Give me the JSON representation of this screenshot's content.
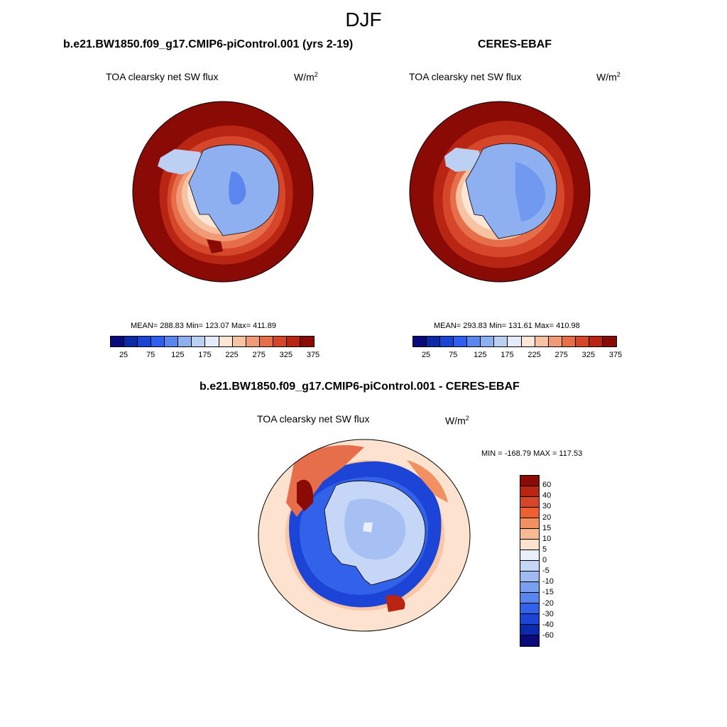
{
  "season": "DJF",
  "panel_left": {
    "title": "b.e21.BW1850.f09_g17.CMIP6-piControl.001 (yrs 2-19)",
    "variable": "TOA clearsky net SW flux",
    "units_base": "W/m",
    "units_exp": "2",
    "stats": "MEAN= 288.83  Min= 123.07  Max= 411.89"
  },
  "panel_right": {
    "title": "CERES-EBAF",
    "variable": "TOA clearsky net SW flux",
    "units_base": "W/m",
    "units_exp": "2",
    "stats": "MEAN= 293.83  Min= 131.61  Max= 410.98"
  },
  "panel_diff": {
    "title": "b.e21.BW1850.f09_g17.CMIP6-piControl.001 - CERES-EBAF",
    "variable": "TOA clearsky net SW flux",
    "units_base": "W/m",
    "units_exp": "2",
    "stats": "MIN = -168.79 MAX = 117.53"
  },
  "colorbar_abs": {
    "colors": [
      "#0a0a7a",
      "#0d2aa6",
      "#1a44d2",
      "#2f5ef0",
      "#5a86ee",
      "#8fb0f0",
      "#bcd0f4",
      "#e4ecfa",
      "#fde6d6",
      "#f8c3a2",
      "#f19b76",
      "#e66e4a",
      "#d6462a",
      "#b82512",
      "#8a0a05"
    ],
    "labels": [
      "25",
      "75",
      "125",
      "175",
      "225",
      "275",
      "325",
      "375"
    ]
  },
  "colorbar_diff": {
    "colors": [
      "#8a0a05",
      "#b82512",
      "#d6462a",
      "#ee5f32",
      "#f39062",
      "#f8b994",
      "#fde3cf",
      "#e9f0fb",
      "#c6d6f6",
      "#9fbaf2",
      "#7b9ff0",
      "#5a84ee",
      "#3362ea",
      "#1c44d6",
      "#0c2ab0",
      "#0a0a7a"
    ],
    "labels": [
      "60",
      "40",
      "30",
      "20",
      "15",
      "10",
      "5",
      "0",
      "-5",
      "-10",
      "-15",
      "-20",
      "-30",
      "-40",
      "-60"
    ]
  }
}
